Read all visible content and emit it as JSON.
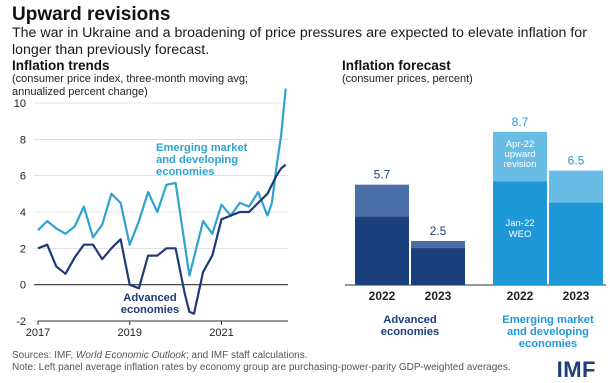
{
  "header": {
    "title": "Upward revisions",
    "subtitle": "The war in Ukraine and a broadening of price pressures are expected to elevate inflation for longer than previously forecast."
  },
  "footer": {
    "sources_prefix": "Sources: IMF, ",
    "sources_italic": "World Economic Outlook",
    "sources_suffix": "; and IMF staff calculations.",
    "note": "Note: Left panel average inflation rates by economy group are purchasing-power-parity GDP-weighted averages.",
    "logo": "IMF"
  },
  "colors": {
    "emerging_line": "#2ea3d0",
    "advanced_line": "#1f3a78",
    "adv_dark": "#1b3f7c",
    "adv_light": "#4a6fa8",
    "em_dark": "#1f98d8",
    "em_light": "#67bde6",
    "axis": "#333333",
    "grid": "#cfcfcf"
  },
  "chart_data": [
    {
      "type": "line",
      "title": "Inflation trends",
      "subtitle": "(consumer price index, three-month moving avg; annualized percent change)",
      "ylim": [
        -2,
        10
      ],
      "yticks": [
        -2,
        0,
        2,
        4,
        6,
        8,
        10
      ],
      "x_tick_labels": [
        "2017",
        "2019",
        "2021"
      ],
      "x_tick_values": [
        2017,
        2019,
        2021
      ],
      "xlim": [
        2017,
        2022.45
      ],
      "grid": true,
      "series": [
        {
          "name": "Emerging market and developing economies",
          "color": "#2ea3d0",
          "x": [
            2017.0,
            2017.2,
            2017.4,
            2017.6,
            2017.8,
            2018.0,
            2018.2,
            2018.4,
            2018.6,
            2018.8,
            2019.0,
            2019.2,
            2019.4,
            2019.6,
            2019.8,
            2020.0,
            2020.2,
            2020.3,
            2020.4,
            2020.6,
            2020.8,
            2021.0,
            2021.2,
            2021.4,
            2021.6,
            2021.8,
            2022.0,
            2022.1,
            2022.2,
            2022.3,
            2022.4
          ],
          "y": [
            3.0,
            3.5,
            3.1,
            2.8,
            3.2,
            4.3,
            2.6,
            3.3,
            5.0,
            4.5,
            2.2,
            3.5,
            5.1,
            4.0,
            5.5,
            5.6,
            2.2,
            0.5,
            1.5,
            3.5,
            2.8,
            4.4,
            3.8,
            4.5,
            4.3,
            5.1,
            3.8,
            4.5,
            6.5,
            8.2,
            10.8
          ]
        },
        {
          "name": "Advanced economies",
          "color": "#1f3a78",
          "x": [
            2017.0,
            2017.2,
            2017.4,
            2017.6,
            2017.8,
            2018.0,
            2018.2,
            2018.4,
            2018.6,
            2018.8,
            2019.0,
            2019.2,
            2019.4,
            2019.6,
            2019.8,
            2020.0,
            2020.2,
            2020.3,
            2020.4,
            2020.6,
            2020.8,
            2021.0,
            2021.2,
            2021.4,
            2021.6,
            2021.8,
            2022.0,
            2022.1,
            2022.2,
            2022.3,
            2022.4
          ],
          "y": [
            2.0,
            2.2,
            1.0,
            0.6,
            1.5,
            2.2,
            2.2,
            1.4,
            2.0,
            2.5,
            0.0,
            -0.2,
            1.6,
            1.6,
            2.0,
            2.0,
            -0.5,
            -1.5,
            -1.6,
            0.7,
            1.6,
            3.6,
            3.8,
            4.0,
            4.0,
            4.5,
            5.0,
            5.5,
            6.0,
            6.4,
            6.6
          ]
        }
      ],
      "annotations": [
        {
          "text": "Emerging market and developing economies",
          "lines": [
            "Emerging market",
            "and developing",
            "economies"
          ]
        },
        {
          "text": "Advanced economies",
          "lines": [
            "Advanced",
            "economies"
          ]
        }
      ]
    },
    {
      "type": "bar",
      "title": "Inflation forecast",
      "subtitle": "(consumer prices, percent)",
      "ylim": [
        0,
        10
      ],
      "groups": [
        {
          "name": "Advanced economies",
          "lines": [
            "Advanced",
            "economies"
          ],
          "categories": [
            "2022",
            "2023"
          ],
          "jan22_weo": [
            3.9,
            2.1
          ],
          "revised_total": [
            5.7,
            2.5
          ],
          "labels": [
            "5.7",
            "2.5"
          ]
        },
        {
          "name": "Emerging market and developing economies",
          "lines": [
            "Emerging market",
            "and developing",
            "economies"
          ],
          "categories": [
            "2022",
            "2023"
          ],
          "jan22_weo": [
            5.9,
            4.7
          ],
          "revised_total": [
            8.7,
            6.5
          ],
          "labels": [
            "8.7",
            "6.5"
          ]
        }
      ],
      "segment_labels": {
        "revision": [
          "Apr-22",
          "upward",
          "revision"
        ],
        "base": [
          "Jan-22",
          "WEO"
        ]
      }
    }
  ]
}
